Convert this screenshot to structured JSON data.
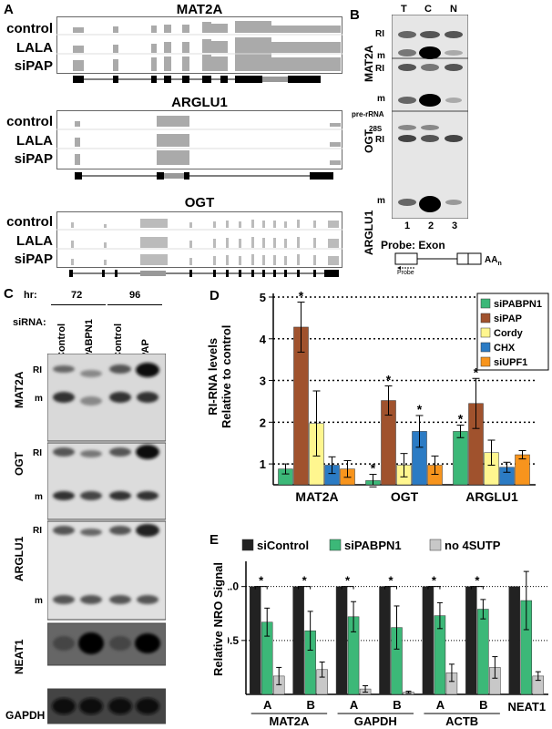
{
  "panelA": {
    "letter": "A",
    "track_labels": [
      "control",
      "LALA",
      "siPAP"
    ],
    "genes": [
      {
        "name": "MAT2A"
      },
      {
        "name": "ARGLU1"
      },
      {
        "name": "OGT"
      }
    ]
  },
  "panelB": {
    "letter": "B",
    "lanes": [
      "T",
      "C",
      "N"
    ],
    "lane_numbers": [
      "1",
      "2",
      "3"
    ],
    "genes": [
      "MAT2A",
      "OGT",
      "ARGLU1"
    ],
    "markers": {
      "ri": "RI",
      "m": "m",
      "pre_rrna": "pre-rRNA",
      "s28": "28S"
    },
    "probe_title": "Probe: Exon",
    "probe_label": "Probe",
    "aa_label": "AA",
    "aa_sub": "n"
  },
  "panelC": {
    "letter": "C",
    "hr_label": "hr:",
    "timepoints": [
      "72",
      "96"
    ],
    "sirna_label": "siRNA:",
    "lanes": [
      "Control",
      "PABPN1",
      "Control",
      "PAP"
    ],
    "blots": [
      "MAT2A",
      "OGT",
      "ARGLU1",
      "NEAT1",
      "GAPDH"
    ],
    "markers": {
      "ri": "RI",
      "m": "m"
    }
  },
  "panelD": {
    "letter": "D",
    "chart_data": {
      "type": "bar",
      "ylabel": "RI-RNA levels\nRelative to control",
      "ylim": [
        0.5,
        5
      ],
      "yticks": [
        1,
        2,
        3,
        4,
        5
      ],
      "categories": [
        "MAT2A",
        "OGT",
        "ARGLU1"
      ],
      "series": [
        {
          "name": "siPABPN1",
          "color": "#3cb878",
          "values": [
            0.88,
            0.6,
            1.78
          ],
          "errors": [
            0.12,
            0.15,
            0.15
          ],
          "sig": [
            false,
            true,
            true
          ]
        },
        {
          "name": "siPAP",
          "color": "#a0522d",
          "values": [
            4.28,
            2.52,
            2.45
          ],
          "errors": [
            0.6,
            0.35,
            0.6
          ],
          "sig": [
            true,
            true,
            true
          ]
        },
        {
          "name": "Cordy",
          "color": "#fff68f",
          "values": [
            1.97,
            0.97,
            1.27
          ],
          "errors": [
            0.78,
            0.28,
            0.3
          ],
          "sig": [
            false,
            false,
            false
          ]
        },
        {
          "name": "CHX",
          "color": "#2b7bc4",
          "values": [
            0.97,
            1.78,
            0.92
          ],
          "errors": [
            0.2,
            0.38,
            0.12
          ],
          "sig": [
            false,
            true,
            false
          ]
        },
        {
          "name": "siUPF1",
          "color": "#f7941d",
          "values": [
            0.88,
            0.97,
            1.22
          ],
          "errors": [
            0.2,
            0.22,
            0.1
          ],
          "sig": [
            false,
            false,
            false
          ]
        }
      ],
      "sig_label": "*",
      "legend": "top-right"
    }
  },
  "panelE": {
    "letter": "E",
    "chart_data": {
      "type": "bar",
      "ylabel": "Relative NRO Signal",
      "ylim": [
        0,
        1.2
      ],
      "yticks": [
        0.5,
        1.0
      ],
      "ytick_labels": [
        "0.5",
        "1.0"
      ],
      "categories": [
        "A",
        "B",
        "A",
        "B",
        "A",
        "B",
        ""
      ],
      "groups": [
        {
          "name": "MAT2A",
          "span": [
            0,
            1
          ]
        },
        {
          "name": "GAPDH",
          "span": [
            2,
            3
          ]
        },
        {
          "name": "ACTB",
          "span": [
            4,
            5
          ]
        },
        {
          "name": "NEAT1",
          "span": [
            6,
            6
          ]
        }
      ],
      "series": [
        {
          "name": "siControl",
          "color": "#222222",
          "values": [
            1,
            1,
            1,
            1,
            1,
            1,
            1
          ],
          "errors": [
            0,
            0,
            0,
            0,
            0,
            0,
            0
          ]
        },
        {
          "name": "siPABPN1",
          "color": "#3cb878",
          "values": [
            0.67,
            0.59,
            0.72,
            0.62,
            0.73,
            0.79,
            0.87
          ],
          "errors": [
            0.13,
            0.18,
            0.14,
            0.2,
            0.12,
            0.09,
            0.27
          ]
        },
        {
          "name": "no 4SUTP",
          "color": "#c8c8c8",
          "values": [
            0.17,
            0.23,
            0.05,
            0.02,
            0.2,
            0.25,
            0.17
          ],
          "errors": [
            0.08,
            0.07,
            0.03,
            0.01,
            0.08,
            0.1,
            0.04
          ]
        }
      ],
      "sig": [
        true,
        true,
        true,
        true,
        true,
        true,
        false
      ],
      "sig_label": "*",
      "legend": "top"
    }
  }
}
